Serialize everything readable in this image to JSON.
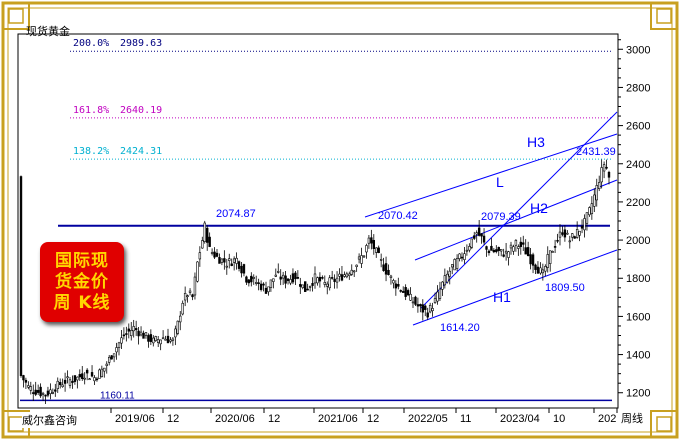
{
  "symbol_label": "现货黄金",
  "footer_label": "威尔鑫咨询",
  "badge": {
    "line1": "国际现",
    "line2": "货金价",
    "line3": "周 K线"
  },
  "colors": {
    "frame": "#c8a020",
    "axis": "#000000",
    "candle": "#000000",
    "hline": "#0000a0",
    "channel": "#0000ff",
    "fib200": "#000080",
    "fib161": "#c000c0",
    "fib138": "#00b0d0",
    "badge_bg": "#e00000",
    "badge_text": "#ffd700"
  },
  "chart_data": {
    "type": "candlestick",
    "title": "",
    "ylim": [
      1120,
      3080
    ],
    "y_ticks": [
      1200,
      1400,
      1600,
      1800,
      2000,
      2200,
      2400,
      2600,
      2800,
      3000
    ],
    "x_ticks": [
      "2019/06",
      "12",
      "2020/06",
      "12",
      "2021/06",
      "12",
      "2022/05",
      "11",
      "2023/04",
      "10",
      "202",
      "周线"
    ],
    "fib_levels": [
      {
        "label": "200.0%",
        "value": 2989.63,
        "value_text": "2989.63"
      },
      {
        "label": "161.8%",
        "value": 2640.19,
        "value_text": "2640.19"
      },
      {
        "label": "138.2%",
        "value": 2424.31,
        "value_text": "2424.31"
      }
    ],
    "support_level": {
      "value": 1160.11,
      "value_text": "1160.11"
    },
    "resistance_level": 2075,
    "annotations": [
      {
        "text": "2074.87",
        "value": 2074.87
      },
      {
        "text": "2070.42",
        "value": 2070.42
      },
      {
        "text": "2079.39",
        "value": 2079.39
      },
      {
        "text": "2431.39",
        "value": 2431.39
      },
      {
        "text": "1614.20",
        "value": 1614.2
      },
      {
        "text": "1809.50",
        "value": 1809.5
      }
    ],
    "channel_labels": [
      "H3",
      "L",
      "H2",
      "H1"
    ],
    "price_path": [
      [
        0,
        1290
      ],
      [
        3,
        1230
      ],
      [
        6,
        1210
      ],
      [
        10,
        1190
      ],
      [
        14,
        1230
      ],
      [
        18,
        1260
      ],
      [
        22,
        1270
      ],
      [
        26,
        1300
      ],
      [
        30,
        1280
      ],
      [
        34,
        1330
      ],
      [
        38,
        1420
      ],
      [
        42,
        1500
      ],
      [
        46,
        1540
      ],
      [
        50,
        1500
      ],
      [
        54,
        1470
      ],
      [
        58,
        1490
      ],
      [
        62,
        1470
      ],
      [
        64,
        1560
      ],
      [
        66,
        1680
      ],
      [
        68,
        1720
      ],
      [
        70,
        1700
      ],
      [
        72,
        1880
      ],
      [
        74,
        2000
      ],
      [
        75,
        2070
      ],
      [
        77,
        1950
      ],
      [
        80,
        1910
      ],
      [
        84,
        1880
      ],
      [
        88,
        1900
      ],
      [
        92,
        1800
      ],
      [
        96,
        1780
      ],
      [
        100,
        1740
      ],
      [
        104,
        1820
      ],
      [
        108,
        1790
      ],
      [
        112,
        1810
      ],
      [
        116,
        1740
      ],
      [
        120,
        1800
      ],
      [
        124,
        1770
      ],
      [
        128,
        1790
      ],
      [
        132,
        1820
      ],
      [
        136,
        1860
      ],
      [
        140,
        1930
      ],
      [
        142,
        2000
      ],
      [
        144,
        1960
      ],
      [
        148,
        1860
      ],
      [
        152,
        1780
      ],
      [
        156,
        1730
      ],
      [
        160,
        1680
      ],
      [
        163,
        1640
      ],
      [
        166,
        1620
      ],
      [
        169,
        1680
      ],
      [
        172,
        1770
      ],
      [
        176,
        1860
      ],
      [
        180,
        1920
      ],
      [
        183,
        1980
      ],
      [
        186,
        2040
      ],
      [
        188,
        2010
      ],
      [
        190,
        1950
      ],
      [
        194,
        1940
      ],
      [
        198,
        1930
      ],
      [
        202,
        1980
      ],
      [
        205,
        1960
      ],
      [
        208,
        1900
      ],
      [
        211,
        1850
      ],
      [
        213,
        1820
      ],
      [
        215,
        1900
      ],
      [
        218,
        1980
      ],
      [
        221,
        2050
      ],
      [
        224,
        2000
      ],
      [
        227,
        2040
      ],
      [
        230,
        2090
      ],
      [
        232,
        2150
      ],
      [
        234,
        2230
      ],
      [
        236,
        2320
      ],
      [
        238,
        2400
      ],
      [
        239,
        2380
      ],
      [
        240,
        2330
      ]
    ]
  }
}
